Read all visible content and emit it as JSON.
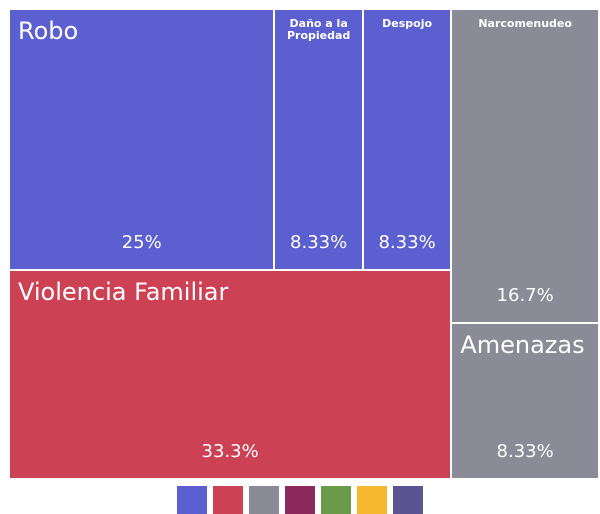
{
  "chart_data": {
    "type": "treemap",
    "children": [
      {
        "children": [
          {
            "children": [
              {
                "name": "Robo",
                "value": 25,
                "value_label": "25%",
                "color": "#5b5fcf"
              },
              {
                "name": "Daño a la Propiedad",
                "value": 8.33,
                "value_label": "8.33%",
                "color": "#5b5fcf"
              },
              {
                "name": "Despojo",
                "value": 8.33,
                "value_label": "8.33%",
                "color": "#5b5fcf"
              }
            ]
          },
          {
            "name": "Violencia Familiar",
            "value": 33.3,
            "value_label": "33.3%",
            "color": "#cc4154"
          }
        ]
      },
      {
        "children": [
          {
            "name": "Narcomenudeo",
            "value": 16.7,
            "value_label": "16.7%",
            "color": "#8a8b96"
          },
          {
            "name": "Amenazas",
            "value": 8.33,
            "value_label": "8.33%",
            "color": "#8a8b96"
          }
        ]
      }
    ],
    "legend_colors": [
      "#5b5fcf",
      "#cc4154",
      "#8a8b96",
      "#8b2a5a",
      "#6a9a4a",
      "#f5b82e",
      "#5a5590"
    ]
  }
}
